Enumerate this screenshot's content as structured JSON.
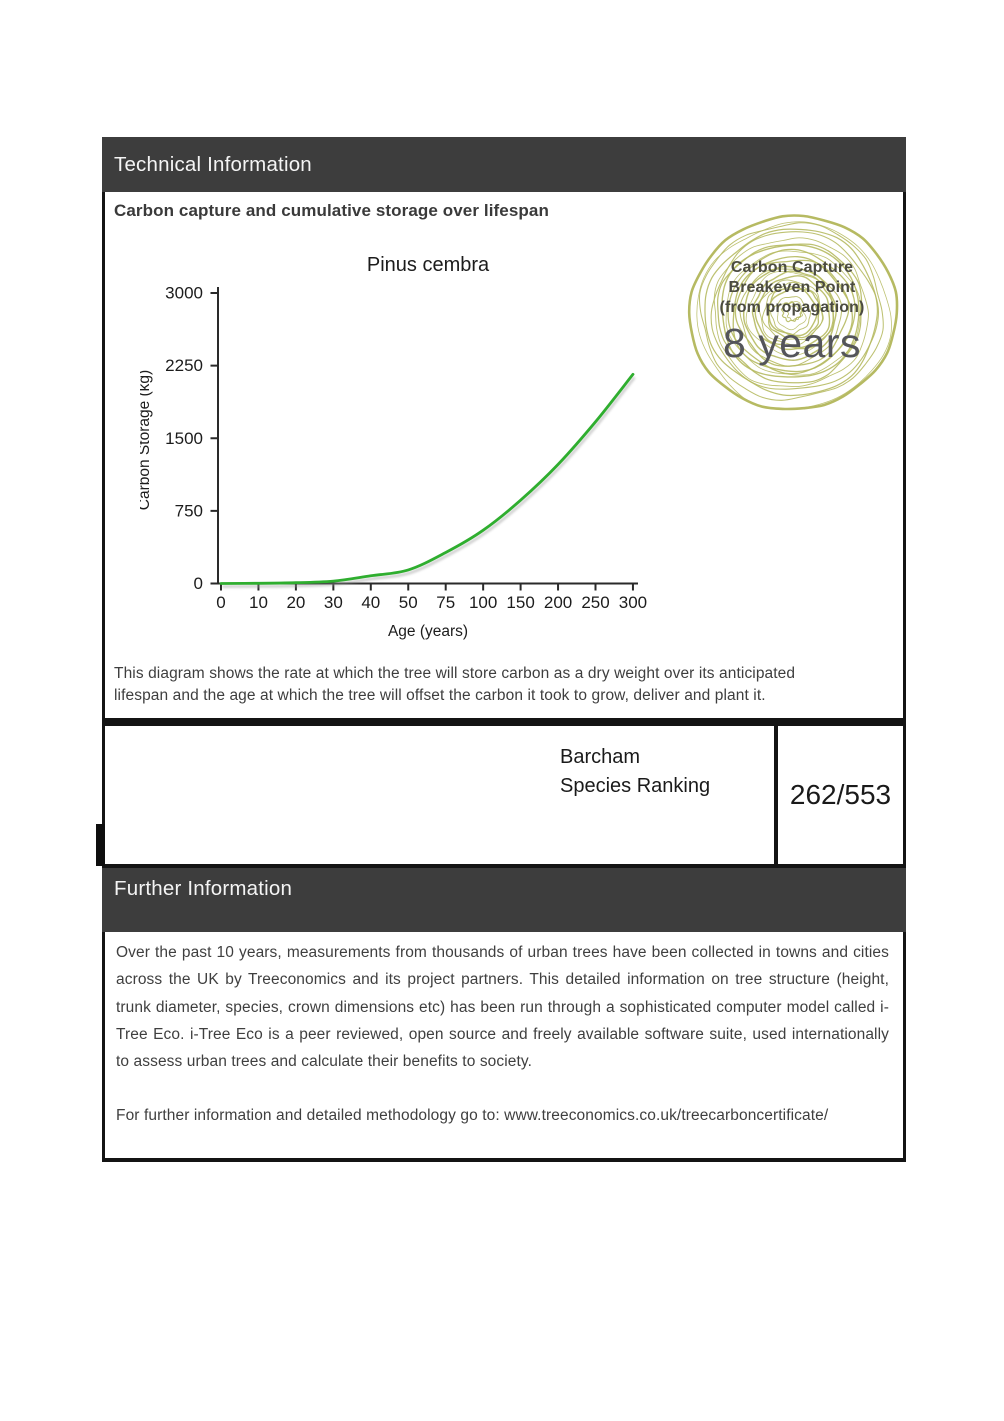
{
  "colors": {
    "bar_bg": "#3d3d3d",
    "bar_text": "#f4f4f4",
    "border": "#141414",
    "body_text": "#3f3f3f",
    "chart_text": "#1c1c1c",
    "axis": "#2a2a2a",
    "curve_green": "#2fae2f",
    "ring_olive": "#b6ba62",
    "badge_heading": "#4b4b40",
    "badge_value": "#54555a"
  },
  "technical_section": {
    "title": "Technical Information",
    "subtitle": "Carbon capture and cumulative storage over lifespan",
    "note_line1": "This diagram shows the rate at which the tree will store carbon as a dry weight over its anticipated",
    "note_line2": "lifespan and the age at which the tree will offset the carbon it took to grow, deliver and plant it."
  },
  "badge": {
    "heading_line1": "Carbon Capture",
    "heading_line2": "Breakeven Point",
    "heading_line3": "(from propagation)",
    "value": "8 years"
  },
  "chart_data": {
    "type": "line",
    "title": "Pinus cembra",
    "xlabel": "Age (years)",
    "ylabel": "Carbon Storage (kg)",
    "categories": [
      0,
      10,
      20,
      30,
      40,
      50,
      75,
      100,
      150,
      200,
      250,
      300
    ],
    "values": [
      0,
      2,
      8,
      25,
      80,
      140,
      320,
      550,
      860,
      1230,
      1670,
      2160
    ],
    "y_ticks": [
      0,
      750,
      1500,
      2250,
      3000
    ],
    "ylim": [
      0,
      3000
    ],
    "line_color": "#2fae2f",
    "grid": "off",
    "legend": "none",
    "x_axis_spacing": "categorical-equal"
  },
  "ranking": {
    "label_line1": "Barcham",
    "label_line2": "Species Ranking",
    "value": "262/553"
  },
  "further_section": {
    "title": "Further Information",
    "paragraph": "Over the past 10 years, measurements from thousands of urban trees have been collected in towns and cities across the UK by Treeconomics and its project partners. This detailed information on tree structure (height, trunk diameter, species, crown dimensions etc) has been run through a sophisticated computer model called i-Tree Eco. i-Tree Eco is a peer reviewed, open source and freely available software suite, used internationally to assess urban trees and calculate their benefits to society.",
    "link_line": "For further information and detailed methodology go to: www.treeconomics.co.uk/treecarboncertificate/"
  }
}
